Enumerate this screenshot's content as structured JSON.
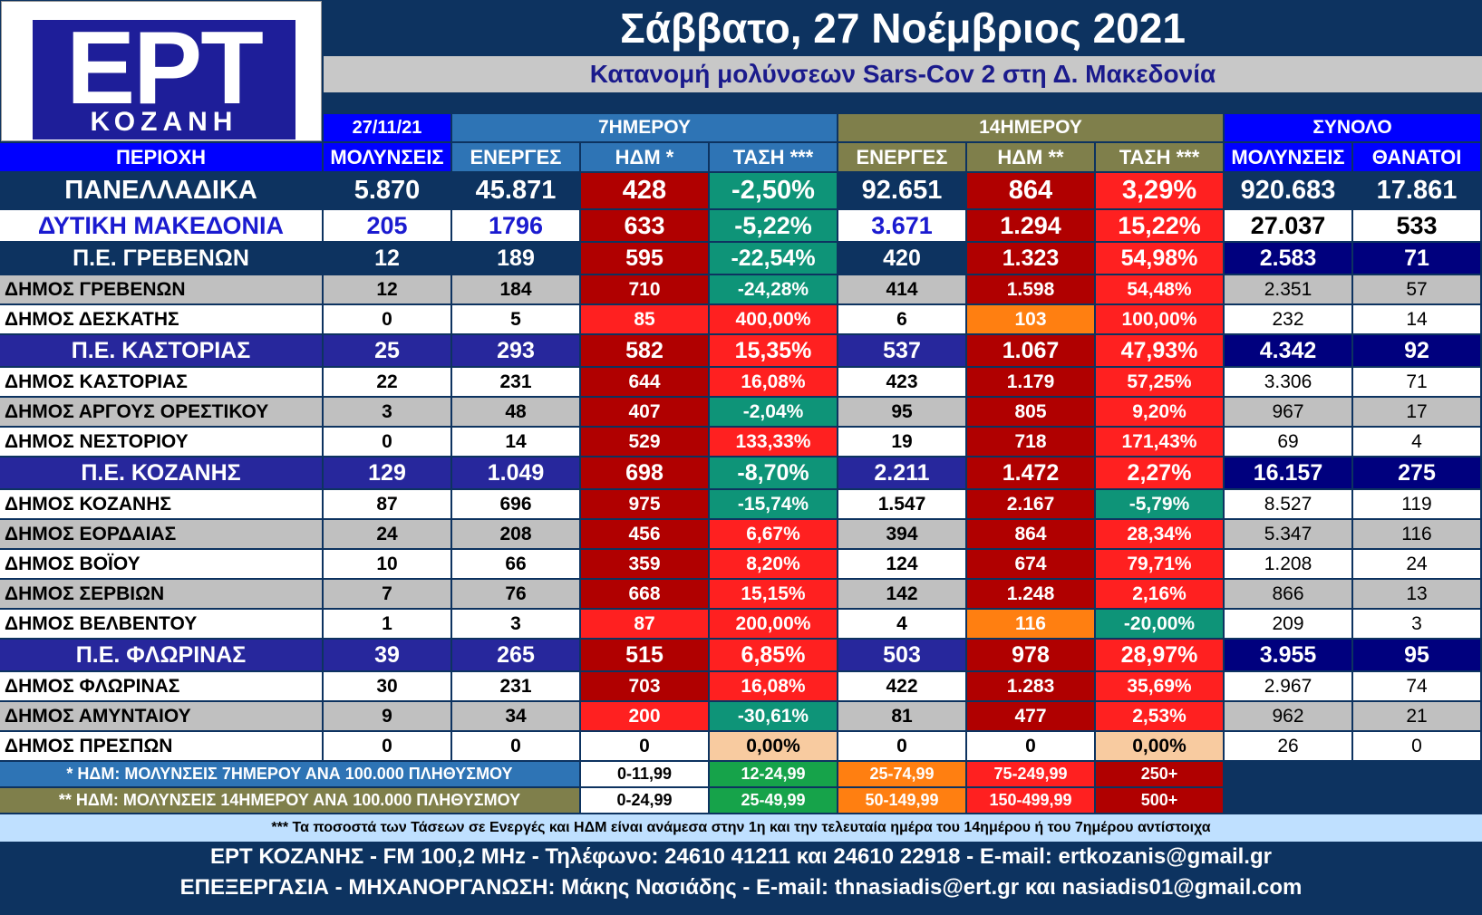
{
  "logo": {
    "main": "ΕΡΤ",
    "sub": "ΚΟΖΑΝΗ"
  },
  "title": "Σάββατο, 27 Νοέμβριος 2021",
  "subtitle": "Κατανομή μολύνσεων Sars-Cov 2 στη Δ. Μακεδονία",
  "group_headers": {
    "date": "27/11/21",
    "seven_day": "7ΗΜΕΡΟΥ",
    "fourteen_day": "14ΗΜΕΡΟΥ",
    "total": "ΣΥΝΟΛΟ"
  },
  "columns": [
    "ΠΕΡΙΟΧΗ",
    "ΜΟΛΥΝΣΕΙΣ",
    "ΕΝΕΡΓΕΣ",
    "ΗΔΜ *",
    "ΤΑΣΗ ***",
    "ΕΝΕΡΓΕΣ",
    "ΗΔΜ **",
    "ΤΑΣΗ ***",
    "ΜΟΛΥΝΣΕΙΣ",
    "ΘΑΝΑΤΟΙ"
  ],
  "rows": [
    {
      "type": "national",
      "cells": [
        "ΠΑΝΕΛΛΑΔΙΚΑ",
        "5.870",
        "45.871",
        "428",
        "-2,50%",
        "92.651",
        "864",
        "3,29%",
        "920.683",
        "17.861"
      ],
      "colors": [
        "dk",
        "g",
        "r"
      ]
    },
    {
      "type": "region",
      "cells": [
        "ΔΥΤΙΚΗ ΜΑΚΕΔΟΝΙΑ",
        "205",
        "1796",
        "633",
        "-5,22%",
        "3.671",
        "1.294",
        "15,22%",
        "27.037",
        "533"
      ],
      "colors": [
        "dk",
        "g",
        "r"
      ]
    },
    {
      "type": "pe",
      "cells": [
        "Π.Ε. ΓΡΕΒΕΝΩΝ",
        "12",
        "189",
        "595",
        "-22,54%",
        "420",
        "1.323",
        "54,98%",
        "2.583",
        "71"
      ],
      "colors": [
        "dk",
        "g",
        "r"
      ]
    },
    {
      "type": "dimos",
      "cells": [
        "ΔΗΜΟΣ ΓΡΕΒΕΝΩΝ",
        "12",
        "184",
        "710",
        "-24,28%",
        "414",
        "1.598",
        "54,48%",
        "2.351",
        "57"
      ],
      "colors": [
        "dk",
        "g",
        "r"
      ]
    },
    {
      "type": "dimos",
      "cells": [
        "ΔΗΜΟΣ ΔΕΣΚΑΤΗΣ",
        "0",
        "5",
        "85",
        "400,00%",
        "6",
        "103",
        "100,00%",
        "232",
        "14"
      ],
      "colors": [
        "r",
        "r",
        "r"
      ],
      "hdm14": "o"
    },
    {
      "type": "pe",
      "cells": [
        "Π.Ε. ΚΑΣΤΟΡΙΑΣ",
        "25",
        "293",
        "582",
        "15,35%",
        "537",
        "1.067",
        "47,93%",
        "4.342",
        "92"
      ],
      "colors": [
        "dk",
        "r",
        "r"
      ]
    },
    {
      "type": "dimos",
      "cells": [
        "ΔΗΜΟΣ ΚΑΣΤΟΡΙΑΣ",
        "22",
        "231",
        "644",
        "16,08%",
        "423",
        "1.179",
        "57,25%",
        "3.306",
        "71"
      ],
      "colors": [
        "dk",
        "r",
        "r"
      ]
    },
    {
      "type": "dimos",
      "cells": [
        "ΔΗΜΟΣ ΑΡΓΟΥΣ ΟΡΕΣΤΙΚΟΥ",
        "3",
        "48",
        "407",
        "-2,04%",
        "95",
        "805",
        "9,20%",
        "967",
        "17"
      ],
      "colors": [
        "dk",
        "g",
        "r"
      ]
    },
    {
      "type": "dimos",
      "cells": [
        "ΔΗΜΟΣ ΝΕΣΤΟΡΙΟΥ",
        "0",
        "14",
        "529",
        "133,33%",
        "19",
        "718",
        "171,43%",
        "69",
        "4"
      ],
      "colors": [
        "dk",
        "r",
        "r"
      ]
    },
    {
      "type": "pe",
      "cells": [
        "Π.Ε. ΚΟΖΑΝΗΣ",
        "129",
        "1.049",
        "698",
        "-8,70%",
        "2.211",
        "1.472",
        "2,27%",
        "16.157",
        "275"
      ],
      "colors": [
        "dk",
        "g",
        "r"
      ]
    },
    {
      "type": "dimos",
      "cells": [
        "ΔΗΜΟΣ ΚΟΖΑΝΗΣ",
        "87",
        "696",
        "975",
        "-15,74%",
        "1.547",
        "2.167",
        "-5,79%",
        "8.527",
        "119"
      ],
      "colors": [
        "dk",
        "g",
        "g"
      ]
    },
    {
      "type": "dimos",
      "cells": [
        "ΔΗΜΟΣ ΕΟΡΔΑΙΑΣ",
        "24",
        "208",
        "456",
        "6,67%",
        "394",
        "864",
        "28,34%",
        "5.347",
        "116"
      ],
      "colors": [
        "dk",
        "r",
        "r"
      ]
    },
    {
      "type": "dimos",
      "cells": [
        "ΔΗΜΟΣ ΒΟΪΟΥ",
        "10",
        "66",
        "359",
        "8,20%",
        "124",
        "674",
        "79,71%",
        "1.208",
        "24"
      ],
      "colors": [
        "dk",
        "r",
        "r"
      ]
    },
    {
      "type": "dimos",
      "cells": [
        "ΔΗΜΟΣ ΣΕΡΒΙΩΝ",
        "7",
        "76",
        "668",
        "15,15%",
        "142",
        "1.248",
        "2,16%",
        "866",
        "13"
      ],
      "colors": [
        "dk",
        "r",
        "r"
      ]
    },
    {
      "type": "dimos",
      "cells": [
        "ΔΗΜΟΣ ΒΕΛΒΕΝΤΟΥ",
        "1",
        "3",
        "87",
        "200,00%",
        "4",
        "116",
        "-20,00%",
        "209",
        "3"
      ],
      "colors": [
        "r",
        "r",
        "g"
      ],
      "hdm14": "o"
    },
    {
      "type": "pe",
      "cells": [
        "Π.Ε. ΦΛΩΡΙΝΑΣ",
        "39",
        "265",
        "515",
        "6,85%",
        "503",
        "978",
        "28,97%",
        "3.955",
        "95"
      ],
      "colors": [
        "dk",
        "r",
        "r"
      ]
    },
    {
      "type": "dimos",
      "cells": [
        "ΔΗΜΟΣ ΦΛΩΡΙΝΑΣ",
        "30",
        "231",
        "703",
        "16,08%",
        "422",
        "1.283",
        "35,69%",
        "2.967",
        "74"
      ],
      "colors": [
        "dk",
        "r",
        "r"
      ]
    },
    {
      "type": "dimos",
      "cells": [
        "ΔΗΜΟΣ ΑΜΥΝΤΑΙΟΥ",
        "9",
        "34",
        "200",
        "-30,61%",
        "81",
        "477",
        "2,53%",
        "962",
        "21"
      ],
      "colors": [
        "r",
        "g",
        "r"
      ]
    },
    {
      "type": "dimos",
      "cells": [
        "ΔΗΜΟΣ ΠΡΕΣΠΩΝ",
        "0",
        "0",
        "0",
        "0,00%",
        "0",
        "0",
        "0,00%",
        "26",
        "0"
      ],
      "colors": [
        "w",
        "p",
        "p"
      ],
      "hdm14": "w"
    }
  ],
  "legend": [
    {
      "label": "* ΗΔΜ: ΜΟΛΥΝΣΕΙΣ 7ΗΜΕΡΟΥ ΑΝΑ 100.000 ΠΛΗΘΥΣΜΟΥ",
      "ranges": [
        "0-11,99",
        "12-24,99",
        "25-74,99",
        "75-249,99",
        "250+"
      ]
    },
    {
      "label": "** ΗΔΜ: ΜΟΛΥΝΣΕΙΣ 14ΗΜΕΡΟΥ ΑΝΑ 100.000 ΠΛΗΘΥΣΜΟΥ",
      "ranges": [
        "0-24,99",
        "25-49,99",
        "50-149,99",
        "150-499,99",
        "500+"
      ]
    }
  ],
  "footnote": "*** Τα ποσοστά των Τάσεων σε Ενεργές και ΗΔΜ είναι ανάμεσα στην 1η και την τελευταία ημέρα του 14ημέρου ή του 7ημέρου αντίστοιχα",
  "contact_line": "ΕΡΤ ΚΟΖΑΝΗΣ - FM 100,2 MHz - Τηλέφωνο:  24610 41211 και 24610 22918 - E-mail: ertkozanis@gmail.gr",
  "credits_line": "ΕΠΕΞΕΡΓΑΣΙΑ  -  ΜΗΧΑΝΟΡΓΑΝΩΣΗ: Μάκης Νασιάδης  -   E-mail: thnasiadis@ert.gr και nasiadis01@gmail.com",
  "colors": {
    "navy": "#0d3360",
    "blue": "#0000ff",
    "seven_day_band": "#2e74b5",
    "fourteen_day_band": "#7f7f4b",
    "dark_red": "#b00000",
    "red": "#ff2020",
    "green": "#0e9478",
    "orange": "#ff7f11",
    "peach": "#f8cba0",
    "light_green": "#16a34a",
    "pe_band": "#27279c",
    "grey": "#c0c0c0",
    "total_pe": "#00007e"
  }
}
